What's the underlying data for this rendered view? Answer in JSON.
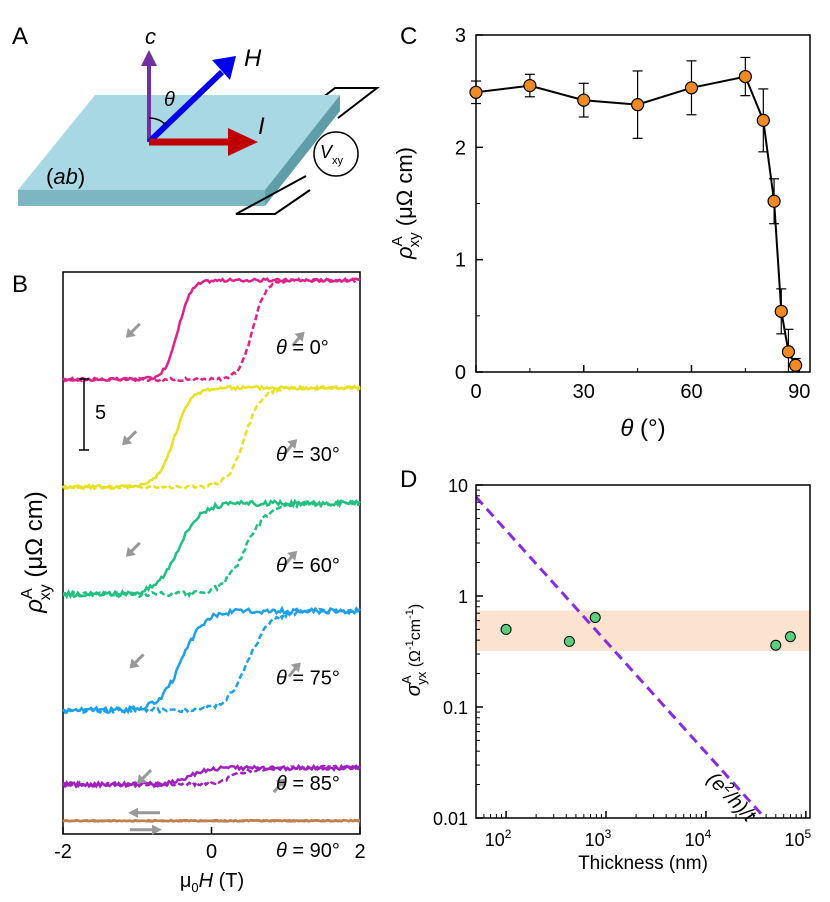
{
  "panel_labels": {
    "a": "A",
    "b": "B",
    "c": "C",
    "d": "D"
  },
  "schematic": {
    "c_label": "c",
    "h_label": "H",
    "theta_label": "θ",
    "i_label": "I",
    "plane_label": "(ab)",
    "v_label": "V",
    "v_sub": "xy",
    "colors": {
      "plate_top": "#a8d8e4",
      "plate_side": "#6aa8b4",
      "c_arrow": "#7030a0",
      "h_arrow": "#0000ee",
      "i_arrow": "#c00000"
    }
  },
  "chart_data": [
    {
      "panel": "B",
      "type": "line",
      "xlabel_pre": "μ",
      "xlabel_sub": "0",
      "xlabel_var": "H",
      "xlabel_unit": " (T)",
      "ylabel_var": "ρ",
      "ylabel_sub": "xy",
      "ylabel_sup": "A",
      "ylabel_unit": " (μΩ cm)",
      "xlim": [
        -2,
        2
      ],
      "xticks": [
        -2,
        0,
        2
      ],
      "xticklabels": [
        "-2",
        "0",
        "2"
      ],
      "scale_bar_value": 5,
      "scale_bar_label": "5",
      "ylim": [
        -2,
        32
      ],
      "series": [
        {
          "name": "θ = 0°",
          "angle_prefix": "θ = ",
          "angle_value": "0°",
          "color": "#e0218a",
          "offset": 25.5,
          "amplitude": 6.0,
          "up_center": 0.55,
          "down_center": -0.45,
          "width": 0.35,
          "noise": 0.18
        },
        {
          "name": "θ = 30°",
          "angle_prefix": "θ = ",
          "angle_value": "30°",
          "color": "#e8e020",
          "offset": 19.0,
          "amplitude": 6.0,
          "up_center": 0.45,
          "down_center": -0.5,
          "width": 0.45,
          "noise": 0.22
        },
        {
          "name": "θ = 60°",
          "angle_prefix": "θ = ",
          "angle_value": "60°",
          "color": "#20c080",
          "offset": 12.5,
          "amplitude": 5.5,
          "up_center": 0.45,
          "down_center": -0.45,
          "width": 0.6,
          "noise": 0.3
        },
        {
          "name": "θ = 75°",
          "angle_prefix": "θ = ",
          "angle_value": "75°",
          "color": "#1ea0e8",
          "offset": 5.5,
          "amplitude": 6.0,
          "up_center": 0.5,
          "down_center": -0.4,
          "width": 0.6,
          "noise": 0.3
        },
        {
          "name": "θ = 85°",
          "angle_prefix": "θ = ",
          "angle_value": "85°",
          "color": "#a020c0",
          "offset": 1.0,
          "amplitude": 1.0,
          "up_center": 0.3,
          "down_center": -0.3,
          "width": 0.5,
          "noise": 0.25
        },
        {
          "name": "θ = 90°",
          "angle_prefix": "θ = ",
          "angle_value": "90°",
          "color": "#c08050",
          "offset": -1.2,
          "amplitude": 0.0,
          "up_center": 0.0,
          "down_center": 0.0,
          "width": 0.5,
          "noise": 0.08
        }
      ]
    },
    {
      "panel": "C",
      "type": "line",
      "xlabel_var": "θ",
      "xlabel_unit": " (°)",
      "ylabel_var": "ρ",
      "ylabel_sub": "xy",
      "ylabel_sup": "A",
      "ylabel_unit": " (μΩ cm)",
      "xlim": [
        0,
        93
      ],
      "ylim": [
        0,
        3
      ],
      "xticks": [
        0,
        30,
        60,
        90
      ],
      "xticklabels": [
        "0",
        "30",
        "60",
        "90"
      ],
      "yticks": [
        0,
        1,
        2,
        3
      ],
      "yticklabels": [
        "0",
        "1",
        "2",
        "3"
      ],
      "x": [
        0,
        15,
        30,
        45,
        60,
        75,
        80,
        83,
        85,
        87,
        89
      ],
      "y": [
        2.49,
        2.55,
        2.42,
        2.38,
        2.53,
        2.63,
        2.24,
        1.52,
        0.54,
        0.18,
        0.06
      ],
      "yerr": [
        0.1,
        0.1,
        0.15,
        0.3,
        0.24,
        0.17,
        0.28,
        0.2,
        0.2,
        0.2,
        0.06
      ],
      "marker_color": "#f08a24"
    },
    {
      "panel": "D",
      "type": "scatter",
      "xlabel": "Thickness (nm)",
      "ylabel_var": "σ",
      "ylabel_sub": "yx",
      "ylabel_sup": "A",
      "ylabel_unit_pre": " (Ω",
      "ylabel_unit_sup1": "-1",
      "ylabel_unit_mid": "cm",
      "ylabel_unit_sup2": "-1",
      "ylabel_unit_post": ")",
      "xscale": "log",
      "yscale": "log",
      "xlim": [
        50,
        110000
      ],
      "ylim": [
        0.01,
        10
      ],
      "xtick_values": [
        100,
        1000,
        10000,
        100000
      ],
      "xtick_bases": [
        "10",
        "10",
        "10",
        "10"
      ],
      "xtick_exps": [
        "2",
        "3",
        "4",
        "5"
      ],
      "ytick_values": [
        0.01,
        0.1,
        1,
        10
      ],
      "yticklabels": [
        "0.01",
        "0.1",
        "1",
        "10"
      ],
      "x": [
        100,
        430,
        780,
        50000,
        70000
      ],
      "y": [
        0.5,
        0.39,
        0.64,
        0.36,
        0.43
      ],
      "band": [
        0.32,
        0.74
      ],
      "band_color": "#fbe3cf",
      "marker_color": "#5ccf7c",
      "limit_line": {
        "label_pre": "(e",
        "label_sup": "2",
        "label_post": "/h)/t",
        "x_start": 50,
        "y_start": 7.8,
        "x_end": 36000,
        "y_end": 0.0108,
        "color": "#8a2be2"
      }
    }
  ]
}
